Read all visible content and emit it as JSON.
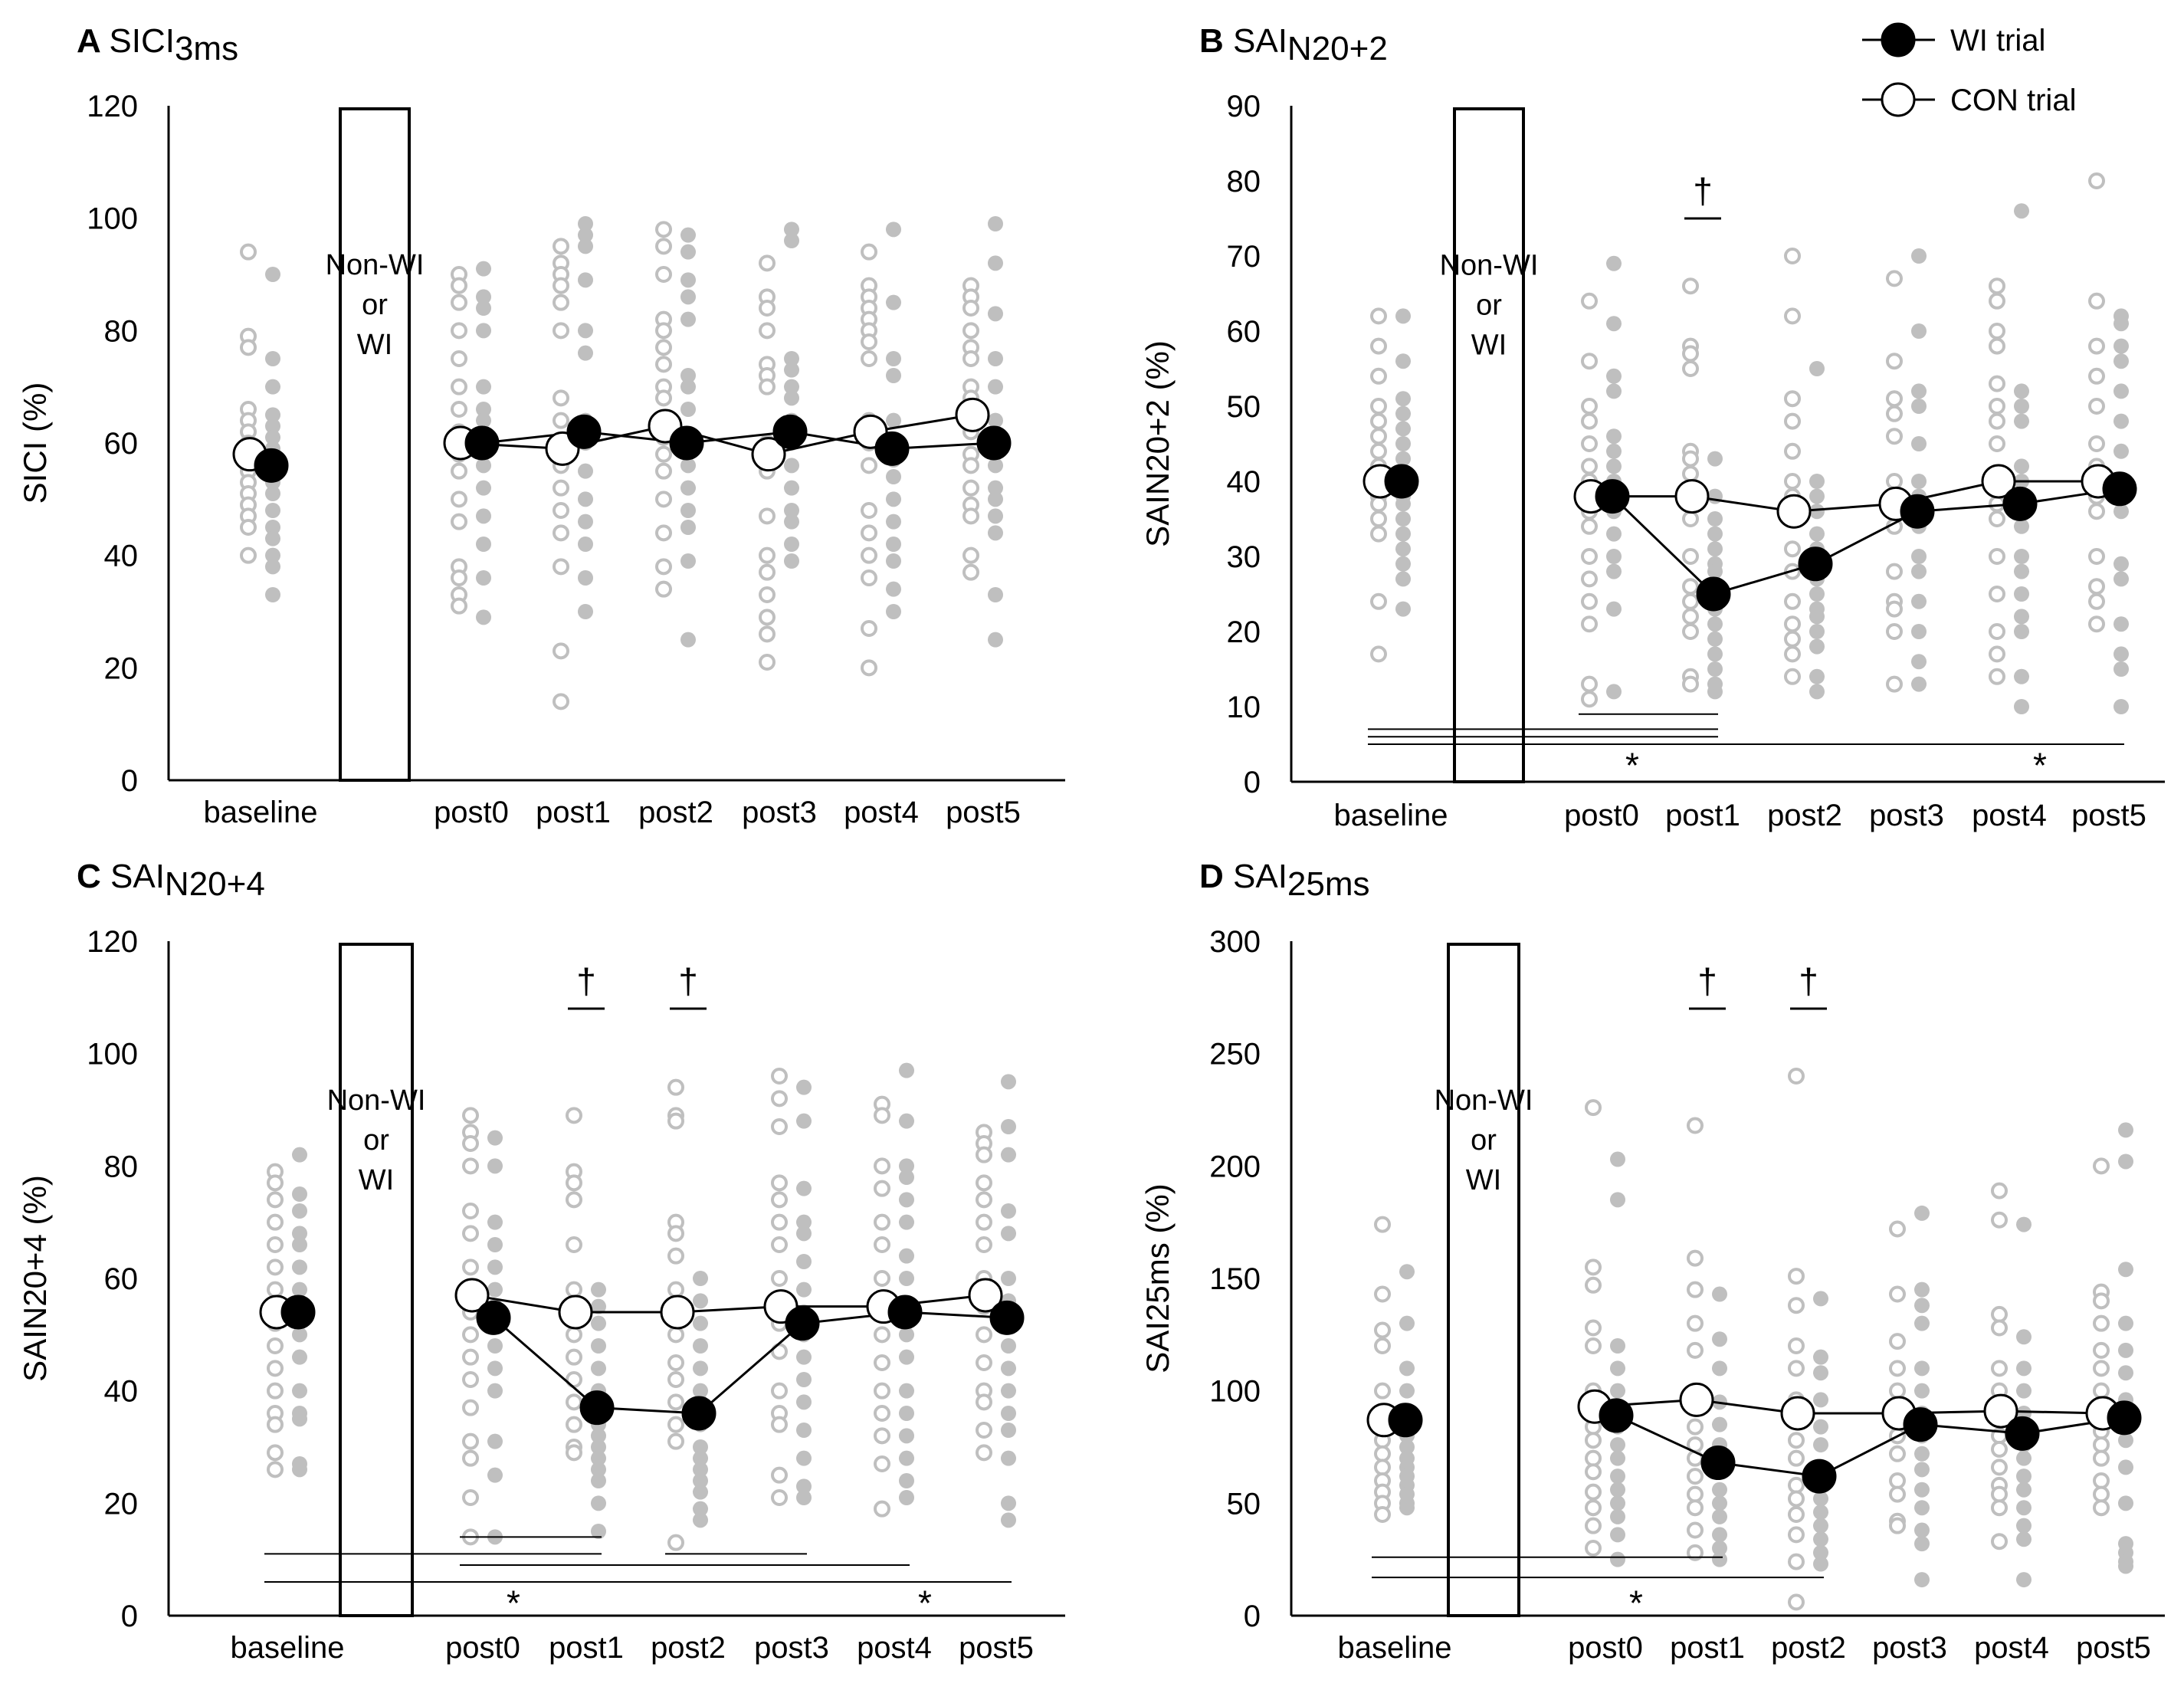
{
  "legend": {
    "wi": "WI trial",
    "con": "CON trial"
  },
  "colors": {
    "wi_fill": "#000000",
    "con_fill": "#ffffff",
    "individual_wi": "#bfbfbf",
    "individual_con": "#bfbfbf",
    "axis": "#000000"
  },
  "categories": [
    "baseline",
    "post0",
    "post1",
    "post2",
    "post3",
    "post4",
    "post5"
  ],
  "chart_data": [
    {
      "type": "line",
      "letter": "A",
      "title_main": "SICI",
      "title_sub": "3ms",
      "ylabel": "SICI (%)",
      "ylim": [
        0,
        120
      ],
      "yticks": [
        0,
        20,
        40,
        60,
        80,
        100,
        120
      ],
      "box_label": [
        "Non-WI",
        "or",
        "WI"
      ],
      "series": [
        {
          "name": "WI trial",
          "values": [
            56,
            60,
            62,
            60,
            62,
            59,
            60
          ]
        },
        {
          "name": "CON trial",
          "values": [
            58,
            60,
            59,
            63,
            58,
            62,
            65
          ]
        }
      ],
      "individual_con": [
        [
          94,
          79,
          77,
          66,
          64,
          62,
          60,
          59,
          57,
          55,
          53,
          51,
          49,
          47,
          45,
          40
        ],
        [
          90,
          88,
          85,
          80,
          75,
          70,
          66,
          62,
          58,
          55,
          50,
          46,
          38,
          36,
          33,
          31
        ],
        [
          95,
          92,
          90,
          88,
          85,
          80,
          68,
          64,
          60,
          56,
          52,
          48,
          44,
          38,
          23,
          14
        ],
        [
          98,
          95,
          90,
          82,
          80,
          77,
          74,
          70,
          68,
          64,
          61,
          58,
          55,
          50,
          44,
          38,
          34
        ],
        [
          92,
          86,
          84,
          80,
          74,
          72,
          70,
          60,
          55,
          47,
          40,
          37,
          33,
          29,
          26,
          21
        ],
        [
          94,
          88,
          86,
          84,
          82,
          80,
          78,
          75,
          64,
          60,
          56,
          48,
          44,
          40,
          36,
          27,
          20
        ],
        [
          88,
          86,
          84,
          80,
          77,
          75,
          70,
          68,
          66,
          62,
          58,
          56,
          52,
          49,
          47,
          40,
          37
        ]
      ],
      "individual_wi": [
        [
          90,
          75,
          70,
          65,
          63,
          61,
          59,
          57,
          55,
          53,
          51,
          48,
          45,
          43,
          40,
          38,
          33
        ],
        [
          91,
          86,
          84,
          80,
          70,
          66,
          64,
          60,
          56,
          52,
          47,
          42,
          36,
          29
        ],
        [
          99,
          97,
          95,
          89,
          80,
          76,
          64,
          60,
          55,
          50,
          46,
          42,
          36,
          30
        ],
        [
          97,
          94,
          89,
          86,
          82,
          72,
          70,
          66,
          60,
          56,
          52,
          48,
          45,
          39,
          25
        ],
        [
          98,
          96,
          75,
          73,
          70,
          68,
          64,
          60,
          56,
          52,
          48,
          46,
          42,
          39
        ],
        [
          98,
          85,
          75,
          72,
          64,
          60,
          57,
          54,
          50,
          46,
          42,
          39,
          34,
          30
        ],
        [
          99,
          92,
          83,
          75,
          70,
          64,
          60,
          56,
          52,
          50,
          47,
          44,
          33,
          25
        ]
      ],
      "markers": [],
      "bars": []
    },
    {
      "type": "line",
      "letter": "B",
      "title_main": "SAI",
      "title_sub": "N20+2",
      "ylabel": "SAIN20+2 (%)",
      "ylim": [
        0,
        90
      ],
      "yticks": [
        0,
        10,
        20,
        30,
        40,
        50,
        60,
        70,
        80,
        90
      ],
      "box_label": [
        "Non-WI",
        "or",
        "WI"
      ],
      "series": [
        {
          "name": "WI trial",
          "values": [
            40,
            38,
            25,
            29,
            36,
            37,
            39
          ]
        },
        {
          "name": "CON trial",
          "values": [
            40,
            38,
            38,
            36,
            37,
            40,
            40
          ]
        }
      ],
      "individual_con": [
        [
          62,
          58,
          54,
          50,
          48,
          46,
          44,
          42,
          41,
          40,
          39,
          38,
          37,
          35,
          33,
          24,
          17
        ],
        [
          64,
          56,
          50,
          48,
          45,
          42,
          40,
          38,
          36,
          34,
          30,
          27,
          24,
          21,
          13,
          11
        ],
        [
          66,
          58,
          57,
          55,
          44,
          43,
          41,
          38,
          35,
          30,
          26,
          24,
          22,
          20,
          14,
          13
        ],
        [
          70,
          62,
          51,
          48,
          44,
          40,
          38,
          35,
          31,
          28,
          24,
          21,
          19,
          17,
          14
        ],
        [
          67,
          56,
          51,
          49,
          46,
          40,
          38,
          36,
          34,
          28,
          24,
          23,
          20,
          13
        ],
        [
          66,
          64,
          60,
          58,
          53,
          50,
          48,
          45,
          40,
          37,
          35,
          30,
          25,
          20,
          17,
          14
        ],
        [
          80,
          64,
          58,
          54,
          50,
          45,
          42,
          38,
          36,
          30,
          26,
          24,
          21
        ]
      ],
      "individual_wi": [
        [
          62,
          56,
          51,
          49,
          47,
          45,
          43,
          41,
          40,
          39,
          38,
          37,
          35,
          33,
          31,
          29,
          27,
          23
        ],
        [
          69,
          61,
          54,
          52,
          46,
          44,
          42,
          40,
          38,
          36,
          33,
          30,
          28,
          23,
          12
        ],
        [
          43,
          38,
          35,
          33,
          31,
          29,
          28,
          26,
          25,
          23,
          21,
          19,
          17,
          15,
          13,
          12
        ],
        [
          55,
          40,
          38,
          36,
          33,
          31,
          29,
          27,
          25,
          23,
          22,
          20,
          18,
          14,
          12
        ],
        [
          70,
          60,
          52,
          50,
          45,
          40,
          38,
          36,
          34,
          30,
          28,
          24,
          20,
          16,
          13
        ],
        [
          76,
          52,
          50,
          48,
          42,
          40,
          38,
          36,
          34,
          30,
          28,
          25,
          22,
          20,
          14,
          10
        ],
        [
          62,
          61,
          58,
          56,
          52,
          48,
          44,
          40,
          38,
          36,
          29,
          27,
          21,
          17,
          15,
          10
        ]
      ],
      "markers": [
        {
          "symbol": "†",
          "category": "post1",
          "value": 75
        }
      ],
      "bars": [
        {
          "from": "baseline",
          "to": "post1",
          "value": 7
        },
        {
          "from": "baseline",
          "to": "post1",
          "value": 6
        },
        {
          "from": "post0",
          "to": "post1",
          "value": 9
        },
        {
          "from": "baseline",
          "to": "post2",
          "value": 5
        },
        {
          "from": "post2",
          "to": "post5",
          "value": 5
        },
        {
          "symbol": "*",
          "at": "post0",
          "value": 2
        },
        {
          "symbol": "*",
          "at": "post4",
          "value": 2
        }
      ]
    },
    {
      "type": "line",
      "letter": "C",
      "title_main": "SAI",
      "title_sub": "N20+4",
      "ylabel": "SAIN20+4 (%)",
      "ylim": [
        0,
        120
      ],
      "yticks": [
        0,
        20,
        40,
        60,
        80,
        100,
        120
      ],
      "box_label": [
        "Non-WI",
        "or",
        "WI"
      ],
      "series": [
        {
          "name": "WI trial",
          "values": [
            54,
            53,
            37,
            36,
            52,
            54,
            53
          ]
        },
        {
          "name": "CON trial",
          "values": [
            54,
            57,
            54,
            54,
            55,
            55,
            57
          ]
        }
      ],
      "individual_con": [
        [
          79,
          77,
          74,
          70,
          66,
          62,
          58,
          55,
          52,
          48,
          44,
          40,
          36,
          34,
          29,
          26
        ],
        [
          89,
          86,
          84,
          80,
          72,
          68,
          62,
          58,
          54,
          50,
          46,
          42,
          37,
          31,
          28,
          21,
          14
        ],
        [
          89,
          79,
          77,
          74,
          66,
          58,
          54,
          50,
          46,
          42,
          38,
          34,
          30,
          29
        ],
        [
          94,
          89,
          88,
          70,
          68,
          64,
          58,
          54,
          50,
          45,
          42,
          38,
          34,
          31,
          13
        ],
        [
          96,
          92,
          87,
          77,
          74,
          70,
          66,
          60,
          55,
          52,
          47,
          40,
          36,
          34,
          25,
          21
        ],
        [
          91,
          89,
          80,
          76,
          70,
          66,
          60,
          56,
          50,
          45,
          40,
          36,
          32,
          27,
          19
        ],
        [
          86,
          84,
          82,
          77,
          74,
          70,
          66,
          60,
          55,
          50,
          45,
          40,
          38,
          33,
          29
        ]
      ],
      "individual_wi": [
        [
          82,
          75,
          72,
          68,
          66,
          62,
          58,
          54,
          50,
          46,
          40,
          36,
          35,
          27,
          26
        ],
        [
          85,
          80,
          70,
          66,
          62,
          58,
          55,
          52,
          48,
          44,
          40,
          31,
          25,
          14
        ],
        [
          58,
          55,
          52,
          48,
          44,
          40,
          38,
          36,
          34,
          32,
          30,
          28,
          26,
          24,
          20,
          15
        ],
        [
          60,
          56,
          52,
          48,
          44,
          40,
          38,
          36,
          34,
          30,
          28,
          26,
          24,
          22,
          19,
          17
        ],
        [
          94,
          88,
          76,
          70,
          68,
          63,
          58,
          54,
          50,
          46,
          42,
          38,
          33,
          28,
          23,
          21
        ],
        [
          97,
          88,
          80,
          78,
          74,
          70,
          64,
          60,
          55,
          50,
          46,
          40,
          36,
          32,
          28,
          24,
          21
        ],
        [
          95,
          87,
          82,
          72,
          68,
          60,
          56,
          52,
          48,
          44,
          40,
          36,
          33,
          28,
          20,
          17
        ]
      ],
      "markers": [
        {
          "symbol": "†",
          "category": "post1",
          "value": 108
        },
        {
          "symbol": "†",
          "category": "post2",
          "value": 108
        }
      ],
      "bars": [
        {
          "from": "post0",
          "to": "post1",
          "value": 14
        },
        {
          "from": "baseline",
          "to": "post1",
          "value": 11
        },
        {
          "from": "post0",
          "to": "post2",
          "value": 9
        },
        {
          "from": "baseline",
          "to": "post2",
          "value": 6
        },
        {
          "from": "post2",
          "to": "post3",
          "value": 11
        },
        {
          "from": "post2",
          "to": "post4",
          "value": 9
        },
        {
          "from": "post2",
          "to": "post5",
          "value": 6
        },
        {
          "symbol": "*",
          "at": "post0",
          "value": 2
        },
        {
          "symbol": "*",
          "at": "post4",
          "value": 2
        }
      ]
    },
    {
      "type": "line",
      "letter": "D",
      "title_main": "SAI",
      "title_sub": "25ms",
      "ylabel": "SAI25ms (%)",
      "ylim": [
        0,
        300
      ],
      "yticks": [
        0,
        50,
        100,
        150,
        200,
        250,
        300
      ],
      "box_label": [
        "Non-WI",
        "or",
        "WI"
      ],
      "series": [
        {
          "name": "WI trial",
          "values": [
            87,
            89,
            68,
            62,
            85,
            81,
            88
          ]
        },
        {
          "name": "CON trial",
          "values": [
            87,
            93,
            96,
            90,
            90,
            91,
            90
          ]
        }
      ],
      "individual_con": [
        [
          174,
          143,
          127,
          120,
          100,
          90,
          84,
          78,
          72,
          66,
          60,
          55,
          50,
          45
        ],
        [
          226,
          155,
          147,
          128,
          120,
          100,
          92,
          84,
          78,
          70,
          64,
          55,
          48,
          40,
          30
        ],
        [
          218,
          159,
          145,
          130,
          118,
          100,
          92,
          84,
          76,
          70,
          62,
          54,
          48,
          38,
          28
        ],
        [
          240,
          151,
          138,
          120,
          110,
          96,
          88,
          78,
          70,
          58,
          52,
          45,
          36,
          24,
          6
        ],
        [
          172,
          143,
          122,
          110,
          100,
          90,
          80,
          72,
          60,
          54,
          42,
          40
        ],
        [
          189,
          176,
          134,
          128,
          110,
          100,
          90,
          80,
          74,
          66,
          58,
          54,
          48,
          33
        ],
        [
          200,
          144,
          140,
          130,
          118,
          110,
          100,
          90,
          82,
          76,
          70,
          60,
          54,
          48
        ]
      ],
      "individual_wi": [
        [
          153,
          130,
          110,
          100,
          90,
          80,
          75,
          70,
          66,
          62,
          58,
          54,
          50,
          48
        ],
        [
          203,
          185,
          120,
          110,
          100,
          90,
          84,
          76,
          70,
          62,
          56,
          50,
          44,
          36,
          25
        ],
        [
          143,
          123,
          110,
          95,
          85,
          76,
          70,
          64,
          56,
          50,
          44,
          36,
          30,
          25
        ],
        [
          141,
          115,
          108,
          96,
          84,
          76,
          66,
          58,
          52,
          46,
          40,
          34,
          28,
          23
        ],
        [
          179,
          145,
          138,
          130,
          110,
          100,
          90,
          80,
          72,
          65,
          56,
          48,
          38,
          32,
          16
        ],
        [
          174,
          124,
          110,
          100,
          90,
          82,
          76,
          70,
          62,
          56,
          48,
          40,
          34,
          16
        ],
        [
          216,
          202,
          154,
          130,
          118,
          108,
          96,
          88,
          78,
          66,
          50,
          32,
          28,
          24,
          22
        ]
      ],
      "markers": [
        {
          "symbol": "†",
          "category": "post1",
          "value": 270
        },
        {
          "symbol": "†",
          "category": "post2",
          "value": 270
        }
      ],
      "bars": [
        {
          "from": "baseline",
          "to": "post1",
          "value": 26
        },
        {
          "from": "baseline",
          "to": "post2",
          "value": 17
        },
        {
          "symbol": "*",
          "at": "post0",
          "value": 5
        }
      ]
    }
  ]
}
